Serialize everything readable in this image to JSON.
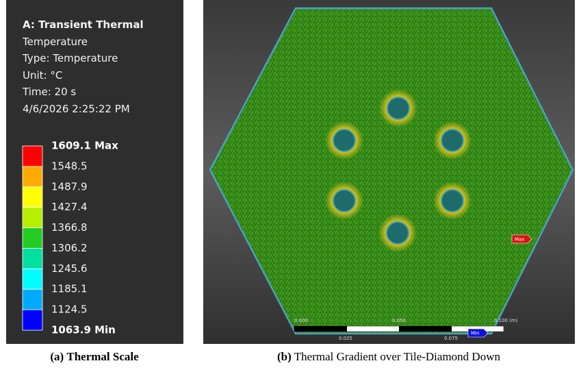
{
  "panel_a": {
    "header": {
      "title": "A: Transient Thermal",
      "lines": [
        "Temperature",
        "Type: Temperature",
        "Unit: °C",
        "Time: 20 s",
        "4/6/2026 2:25:22 PM"
      ]
    },
    "scale": {
      "max_label": "1609.1 Max",
      "labels": [
        "1548.5",
        "1487.9",
        "1427.4",
        "1366.8",
        "1306.2",
        "1245.6",
        "1185.1",
        "1124.5"
      ],
      "min_label": "1063.9 Min"
    },
    "caption": {
      "label": "(a)",
      "text": "Thermal Scale"
    }
  },
  "panel_b": {
    "markers": {
      "max": "Max",
      "min": "Min"
    },
    "scale_bar": {
      "top_labels": [
        "0.000",
        "0.050",
        "0.100 (m)"
      ],
      "bottom_labels": [
        "0.025",
        "0.075"
      ]
    },
    "caption": {
      "label": "(b)",
      "text": "Thermal Gradient over Tile-Diamond Down"
    }
  }
}
